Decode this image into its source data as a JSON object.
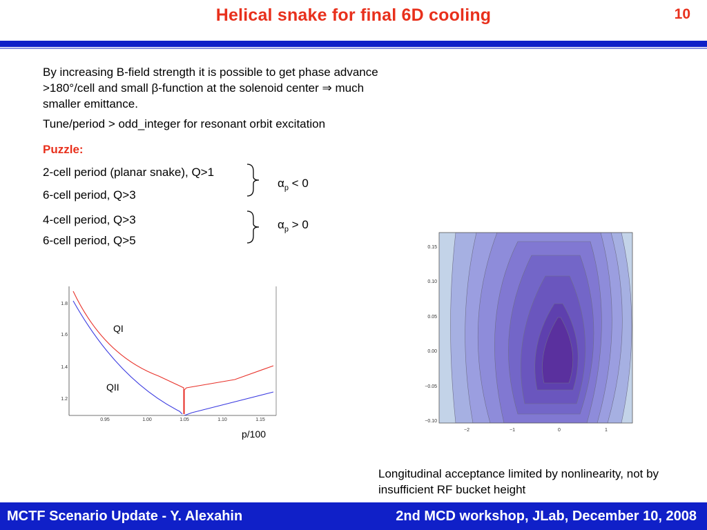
{
  "header": {
    "title": "Helical snake for final 6D cooling",
    "slide_number": "10"
  },
  "body": {
    "bullet1": "By increasing B-field strength it is possible to get phase advance >180°/cell and small β-function at the solenoid center ⇒ much smaller emittance.",
    "bullet2": "Tune/period > odd_integer for resonant orbit excitation",
    "puzzle_label": "Puzzle:",
    "conditions": [
      "2-cell period (planar snake), Q>1",
      "6-cell period, Q>3",
      "4-cell period, Q>3",
      "6-cell period, Q>5"
    ],
    "alpha_symbol": "α",
    "alpha_sub": "p",
    "alpha_neg": " < 0",
    "alpha_pos": " > 0"
  },
  "tune_plot": {
    "label_q1": "QI",
    "label_q2": "QII",
    "xlabel": "p/100",
    "x_ticks": [
      "0.95",
      "1.00",
      "1.05",
      "1.10",
      "1.15"
    ],
    "y_ticks": [
      "1.2",
      "1.4",
      "1.6",
      "1.8"
    ]
  },
  "contour_plot": {
    "x_ticks": [
      "−2",
      "−1",
      "0",
      "1"
    ],
    "y_ticks": [
      "0.15",
      "0.10",
      "0.05",
      "0.00",
      "−0.05",
      "−0.10"
    ]
  },
  "caption": "Longitudinal acceptance limited by nonlinearity, not by insufficient RF bucket height",
  "footer": {
    "left": "MCTF Scenario Update - Y. Alexahin",
    "right": "2nd MCD workshop, JLab, December 10, 2008"
  },
  "colors": {
    "title": "#e8301c",
    "bar": "#1020c8",
    "qi_curve": "#e8322a",
    "qii_curve": "#3a3ae0"
  }
}
